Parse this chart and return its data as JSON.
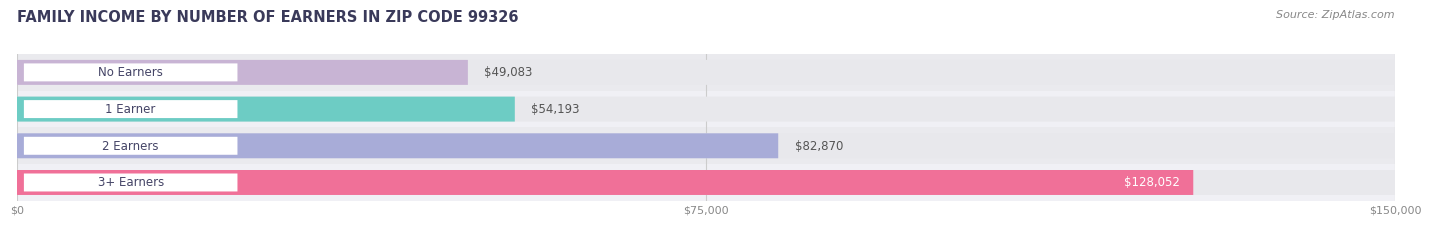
{
  "title": "FAMILY INCOME BY NUMBER OF EARNERS IN ZIP CODE 99326",
  "source": "Source: ZipAtlas.com",
  "categories": [
    "No Earners",
    "1 Earner",
    "2 Earners",
    "3+ Earners"
  ],
  "values": [
    49083,
    54193,
    82870,
    128052
  ],
  "labels": [
    "$49,083",
    "$54,193",
    "$82,870",
    "$128,052"
  ],
  "bar_colors": [
    "#c8b4d4",
    "#6dccc4",
    "#a8acd8",
    "#f07098"
  ],
  "track_color": "#e8e8ec",
  "max_val": 150000,
  "xticks": [
    0,
    75000,
    150000
  ],
  "xtick_labels": [
    "$0",
    "$75,000",
    "$150,000"
  ],
  "title_fontsize": 10.5,
  "source_fontsize": 8,
  "label_fontsize": 8.5,
  "cat_fontsize": 8.5,
  "background_color": "#ffffff",
  "label_inside_color": "#ffffff",
  "label_outside_color": "#555555",
  "pill_bg_color": "#ffffff",
  "title_color": "#3a3a5a",
  "source_color": "#888888",
  "tick_color": "#888888",
  "row_bg_even": "#f5f5f8",
  "row_bg_odd": "#eeeeee"
}
